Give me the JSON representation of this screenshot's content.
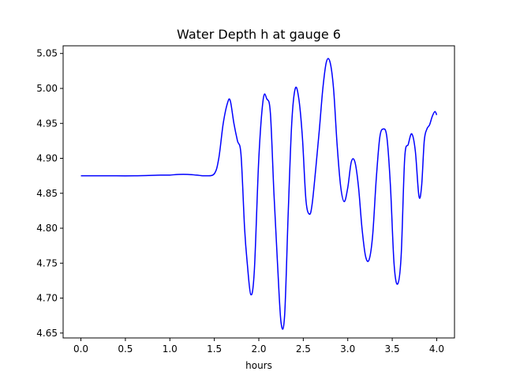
{
  "chart_data": {
    "type": "line",
    "title": "Water Depth h at gauge 6",
    "xlabel": "hours",
    "ylabel": "",
    "xlim": [
      -0.2,
      4.2
    ],
    "ylim": [
      4.643,
      5.061
    ],
    "grid": false,
    "xticks": [
      0.0,
      0.5,
      1.0,
      1.5,
      2.0,
      2.5,
      3.0,
      3.5,
      4.0
    ],
    "xtick_labels": [
      "0.0",
      "0.5",
      "1.0",
      "1.5",
      "2.0",
      "2.5",
      "3.0",
      "3.5",
      "4.0"
    ],
    "yticks": [
      4.65,
      4.7,
      4.75,
      4.8,
      4.85,
      4.9,
      4.95,
      5.0,
      5.05
    ],
    "ytick_labels": [
      "4.65",
      "4.70",
      "4.75",
      "4.80",
      "4.85",
      "4.90",
      "4.95",
      "5.00",
      "5.05"
    ],
    "series": [
      {
        "color": "#0000ff",
        "x": [
          0.0,
          0.3,
          0.6,
          0.9,
          1.0,
          1.1,
          1.2,
          1.3,
          1.4,
          1.5,
          1.55,
          1.6,
          1.65,
          1.68,
          1.72,
          1.76,
          1.8,
          1.84,
          1.87,
          1.91,
          1.95,
          2.0,
          2.05,
          2.09,
          2.13,
          2.17,
          2.21,
          2.25,
          2.29,
          2.33,
          2.37,
          2.41,
          2.45,
          2.49,
          2.53,
          2.57,
          2.6,
          2.64,
          2.68,
          2.72,
          2.76,
          2.8,
          2.84,
          2.88,
          2.92,
          2.96,
          3.0,
          3.04,
          3.08,
          3.12,
          3.16,
          3.2,
          3.24,
          3.28,
          3.32,
          3.36,
          3.4,
          3.44,
          3.48,
          3.52,
          3.56,
          3.6,
          3.64,
          3.68,
          3.72,
          3.76,
          3.8,
          3.83,
          3.86,
          3.89,
          3.92,
          3.95,
          3.98,
          4.0
        ],
        "y": [
          4.875,
          4.875,
          4.875,
          4.876,
          4.876,
          4.877,
          4.877,
          4.876,
          4.875,
          4.878,
          4.9,
          4.95,
          4.98,
          4.982,
          4.95,
          4.925,
          4.905,
          4.8,
          4.75,
          4.705,
          4.74,
          4.9,
          4.985,
          4.985,
          4.965,
          4.85,
          4.75,
          4.665,
          4.675,
          4.82,
          4.95,
          5.0,
          4.985,
          4.93,
          4.84,
          4.82,
          4.835,
          4.885,
          4.94,
          5.0,
          5.038,
          5.038,
          5.0,
          4.92,
          4.86,
          4.838,
          4.858,
          4.895,
          4.895,
          4.86,
          4.8,
          4.76,
          4.755,
          4.79,
          4.87,
          4.93,
          4.942,
          4.93,
          4.86,
          4.75,
          4.72,
          4.76,
          4.9,
          4.92,
          4.935,
          4.91,
          4.846,
          4.86,
          4.925,
          4.942,
          4.948,
          4.96,
          4.967,
          4.962
        ]
      }
    ]
  }
}
